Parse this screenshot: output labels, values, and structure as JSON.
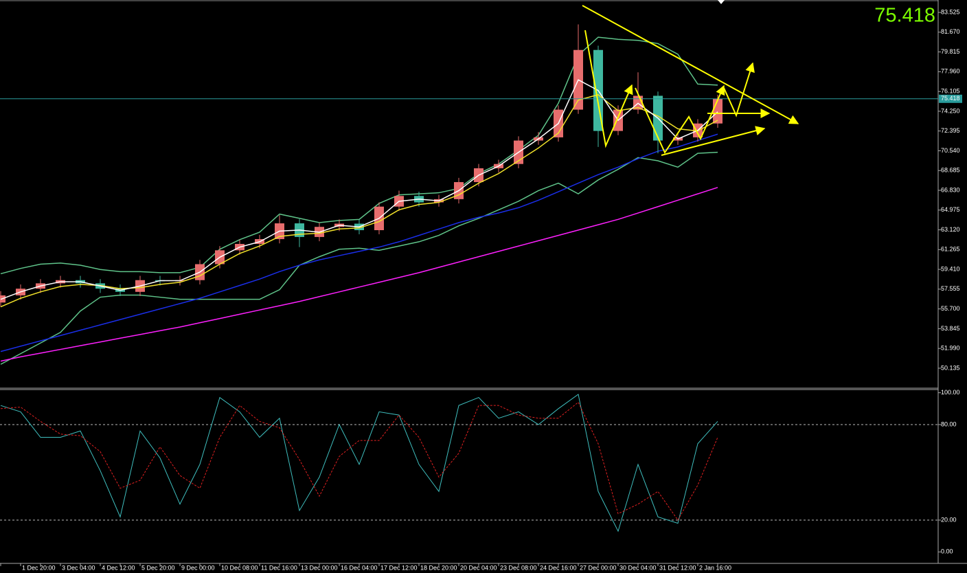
{
  "chart_data": [
    {
      "type": "candlestick",
      "categories": [
        null,
        "1 Dec 20:00",
        null,
        "3 Dec 04:00",
        null,
        "4 Dec 12:00",
        null,
        "5 Dec 20:00",
        null,
        "9 Dec 00:00",
        null,
        "10 Dec 08:00",
        null,
        "11 Dec 16:00",
        null,
        "13 Dec 00:00",
        null,
        "16 Dec 04:00",
        null,
        "17 Dec 12:00",
        null,
        "18 Dec 20:00",
        null,
        "20 Dec 04:00",
        null,
        "23 Dec 08:00",
        null,
        "24 Dec 16:00",
        null,
        "27 Dec 00:00",
        null,
        "30 Dec 04:00",
        null,
        "31 Dec 12:00",
        null,
        "2 Jan 16:00",
        null
      ],
      "open": [
        56.3,
        56.97,
        57.6,
        58.1,
        58.4,
        58.1,
        57.6,
        57.3,
        58.4,
        58.3,
        58.4,
        59.9,
        61.2,
        61.8,
        62.25,
        63.73,
        62.45,
        63.4,
        63.7,
        63.09,
        65.3,
        66.3,
        65.7,
        66.0,
        67.6,
        68.9,
        69.3,
        71.5,
        71.8,
        74.4,
        80.0,
        72.4,
        74.4,
        75.7,
        71.5,
        71.8,
        73.1
      ],
      "high": [
        57.37,
        58.0,
        58.5,
        58.8,
        58.8,
        58.5,
        58.0,
        58.8,
        58.8,
        58.8,
        60.3,
        61.6,
        62.2,
        62.65,
        64.5,
        64.13,
        63.8,
        64.1,
        64.1,
        65.7,
        66.8,
        66.7,
        66.4,
        68.0,
        69.3,
        69.7,
        71.9,
        72.3,
        74.8,
        82.4,
        80.4,
        74.8,
        77.9,
        76.1,
        72.2,
        73.5,
        75.8
      ],
      "low": [
        55.9,
        56.57,
        57.2,
        57.7,
        57.7,
        57.2,
        56.9,
        56.9,
        57.9,
        57.9,
        58.0,
        59.5,
        60.8,
        61.4,
        61.85,
        61.5,
        62.05,
        63.0,
        62.7,
        62.7,
        64.9,
        65.3,
        65.3,
        65.6,
        67.2,
        68.5,
        68.9,
        71.1,
        71.4,
        74.0,
        70.9,
        72.0,
        74.0,
        70.3,
        71.1,
        71.4,
        72.7
      ],
      "close": [
        56.97,
        57.6,
        58.1,
        58.4,
        58.1,
        57.6,
        57.3,
        58.4,
        58.3,
        58.4,
        59.9,
        61.2,
        61.8,
        62.25,
        63.73,
        62.45,
        63.4,
        63.7,
        63.09,
        65.3,
        66.3,
        65.7,
        66.0,
        67.6,
        68.9,
        69.3,
        71.5,
        71.8,
        74.4,
        80.0,
        72.4,
        74.4,
        75.7,
        71.5,
        71.8,
        73.1,
        75.418
      ],
      "up_color": "#e76d6d",
      "down_color": "#3fb8a0",
      "overlays": [
        {
          "color": "#5fc48a",
          "values": [
            59.0,
            59.5,
            59.9,
            60.0,
            59.8,
            59.4,
            59.2,
            59.2,
            59.1,
            59.1,
            59.6,
            61.3,
            62.2,
            62.9,
            64.6,
            64.2,
            63.8,
            64.0,
            64.1,
            65.6,
            66.4,
            66.5,
            66.6,
            67.0,
            68.4,
            69.3,
            70.6,
            72.0,
            75.0,
            79.5,
            81.2,
            81.0,
            80.9,
            80.6,
            79.6,
            76.8,
            76.7
          ]
        },
        {
          "color": "#5fc48a",
          "values": [
            50.5,
            51.5,
            52.5,
            53.5,
            55.5,
            56.8,
            57.0,
            57.0,
            56.8,
            56.6,
            56.6,
            56.6,
            56.6,
            56.6,
            57.5,
            59.8,
            60.6,
            61.3,
            61.4,
            61.2,
            61.6,
            62.0,
            62.6,
            63.5,
            64.2,
            65.0,
            65.8,
            66.8,
            67.5,
            66.5,
            67.8,
            68.8,
            69.9,
            69.6,
            69.0,
            70.3,
            70.4
          ]
        },
        {
          "color": "#ff20ff",
          "values": [
            50.8,
            51.2,
            51.55,
            51.9,
            52.25,
            52.6,
            52.95,
            53.3,
            53.65,
            54.0,
            54.4,
            54.8,
            55.2,
            55.6,
            56.0,
            56.4,
            56.85,
            57.3,
            57.75,
            58.2,
            58.65,
            59.1,
            59.6,
            60.1,
            60.6,
            61.1,
            61.6,
            62.1,
            62.6,
            63.1,
            63.6,
            64.1,
            64.7,
            65.3,
            65.9,
            66.5,
            67.1
          ]
        },
        {
          "color": "#1a2ee8",
          "values": [
            51.7,
            52.2,
            52.7,
            53.2,
            53.7,
            54.2,
            54.7,
            55.2,
            55.7,
            56.2,
            56.7,
            57.3,
            57.9,
            58.5,
            59.2,
            59.8,
            60.3,
            60.7,
            61.1,
            61.5,
            62.0,
            62.6,
            63.2,
            63.8,
            64.3,
            64.7,
            65.2,
            65.9,
            66.7,
            67.5,
            68.3,
            69.0,
            69.8,
            70.5,
            70.9,
            71.5,
            72.1
          ]
        },
        {
          "color": "#f2e22a",
          "values": [
            55.9,
            56.7,
            57.3,
            57.8,
            58.0,
            57.9,
            57.6,
            57.7,
            58.0,
            58.2,
            58.8,
            59.9,
            60.9,
            61.6,
            62.5,
            62.7,
            62.8,
            63.2,
            63.3,
            63.9,
            65.0,
            65.5,
            65.7,
            66.4,
            67.5,
            68.4,
            69.6,
            70.8,
            72.2,
            75.3,
            75.8,
            74.3,
            74.6,
            73.8,
            72.6,
            72.4,
            73.4
          ]
        },
        {
          "color": "#ffffff",
          "values": [
            56.6,
            57.3,
            57.85,
            58.25,
            58.25,
            57.85,
            57.45,
            57.85,
            58.35,
            58.35,
            59.15,
            60.55,
            61.5,
            62.0,
            63.0,
            63.1,
            62.9,
            63.55,
            63.4,
            64.2,
            65.8,
            66.0,
            65.85,
            66.8,
            68.25,
            69.1,
            70.4,
            71.65,
            73.1,
            77.2,
            76.2,
            73.4,
            75.0,
            73.6,
            71.65,
            72.45,
            74.2
          ]
        }
      ],
      "last_price": 75.418,
      "ylim": [
        48.39,
        84.56
      ],
      "yticks": [
        83.525,
        {
          "value": 81.67,
          "label": "81.670"
        },
        79.815,
        {
          "value": 77.96,
          "label": "77.960"
        },
        76.105,
        {
          "value": 74.25,
          "label": "74.250"
        },
        72.395,
        {
          "value": 70.54,
          "label": "70.540"
        },
        68.685,
        {
          "value": 66.83,
          "label": "66.830"
        },
        64.975,
        {
          "value": 63.12,
          "label": "63.120"
        },
        61.265,
        {
          "value": 59.41,
          "label": "59.410"
        },
        57.555,
        {
          "value": 55.7,
          "label": "55.700"
        },
        53.845,
        {
          "value": 51.99,
          "label": "51.990"
        },
        50.135
      ]
    },
    {
      "type": "line",
      "series": [
        {
          "color": "#3fbfbf",
          "values": [
            92,
            88,
            72,
            72,
            76,
            51,
            22,
            76,
            59,
            30,
            55,
            97,
            88,
            72,
            84,
            26,
            47,
            80,
            55,
            88,
            86,
            55,
            38,
            92,
            97,
            84,
            88,
            80,
            90,
            99,
            38,
            13,
            55,
            22,
            18,
            68,
            82
          ]
        },
        {
          "color": "#e02020",
          "dashed": true,
          "values": [
            90,
            91,
            82,
            74,
            73,
            63,
            40,
            45,
            66,
            48,
            40,
            72,
            92,
            82,
            78,
            58,
            35,
            60,
            70,
            70,
            86,
            72,
            47,
            62,
            92,
            92,
            86,
            84,
            84,
            94,
            68,
            24,
            30,
            38,
            20,
            42,
            72
          ]
        }
      ],
      "levels": [
        80,
        20
      ],
      "ylim": [
        -7.2,
        102
      ],
      "yticks": [
        {
          "value": 100,
          "label": "100.00"
        },
        {
          "value": 80,
          "label": "80.00"
        },
        {
          "value": 20,
          "label": "20.00"
        },
        {
          "value": 0,
          "label": "0.00"
        }
      ]
    }
  ]
}
